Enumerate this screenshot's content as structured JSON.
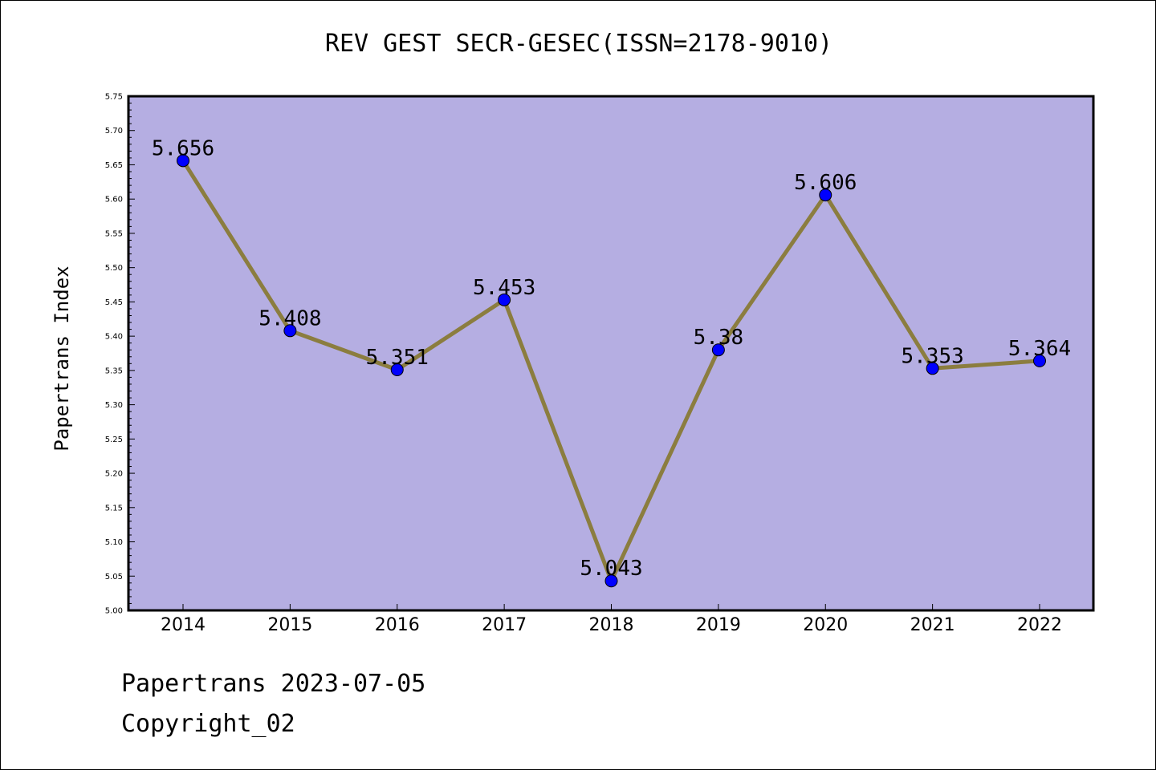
{
  "chart_data": {
    "type": "line",
    "title": "REV GEST SECR-GESEC(ISSN=2178-9010)",
    "xlabel": "",
    "ylabel": "Papertrans Index",
    "x": [
      "2014",
      "2015",
      "2016",
      "2017",
      "2018",
      "2019",
      "2020",
      "2021",
      "2022"
    ],
    "values": [
      5.656,
      5.408,
      5.351,
      5.453,
      5.043,
      5.38,
      5.606,
      5.353,
      5.364
    ],
    "value_labels": [
      "5.656",
      "5.408",
      "5.351",
      "5.453",
      "5.043",
      "5.38",
      "5.606",
      "5.353",
      "5.364"
    ],
    "ylim": [
      5.0,
      5.75
    ],
    "yticks": [
      "5.00",
      "5.05",
      "5.10",
      "5.15",
      "5.20",
      "5.25",
      "5.30",
      "5.35",
      "5.40",
      "5.45",
      "5.50",
      "5.55",
      "5.60",
      "5.65",
      "5.70",
      "5.75"
    ],
    "grid": false,
    "legend": "none",
    "colors": {
      "plot_background": "#b5aee2",
      "line": "#8b7d3f",
      "marker": "#0000ff"
    }
  },
  "footer": {
    "date_line": "Papertrans 2023-07-05",
    "copyright": "Copyright_02"
  }
}
